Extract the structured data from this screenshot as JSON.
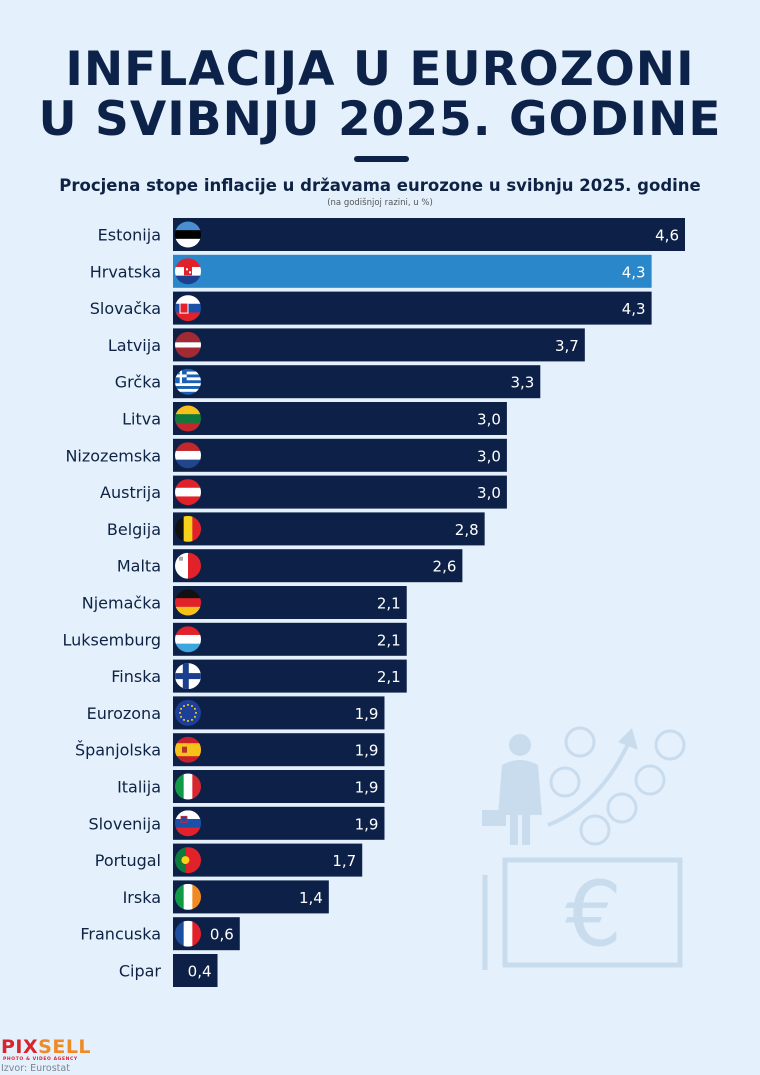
{
  "header": {
    "title_line1": "INFLACIJA U EUROZONI",
    "title_line2": "U SVIBNJU 2025. GODINE",
    "subtitle": "Procjena stope inflacije u državama eurozone u svibnju 2025. godine",
    "subnote": "(na godišnjoj razini, u %)"
  },
  "colors": {
    "background": "#e4f0fc",
    "bar_default": "#0d2148",
    "bar_highlight": "#2a87c9",
    "label_text": "#0e2244",
    "value_text": "#ffffff"
  },
  "chart_data": {
    "type": "bar",
    "orientation": "horizontal",
    "title": "Procjena stope inflacije u državama eurozone u svibnju 2025. godine",
    "subtitle": "(na godišnjoj razini, u %)",
    "xlabel": "",
    "ylabel": "",
    "xlim": [
      0,
      4.6
    ],
    "grid": false,
    "highlight": "Hrvatska",
    "categories": [
      "Estonija",
      "Hrvatska",
      "Slovačka",
      "Latvija",
      "Grčka",
      "Litva",
      "Nizozemska",
      "Austrija",
      "Belgija",
      "Malta",
      "Njemačka",
      "Luksemburg",
      "Finska",
      "Eurozona",
      "Španjolska",
      "Italija",
      "Slovenija",
      "Portugal",
      "Irska",
      "Francuska",
      "Cipar"
    ],
    "values": [
      4.6,
      4.3,
      4.3,
      3.7,
      3.3,
      3.0,
      3.0,
      3.0,
      2.8,
      2.6,
      2.1,
      2.1,
      2.1,
      1.9,
      1.9,
      1.9,
      1.9,
      1.7,
      1.4,
      0.6,
      0.4
    ],
    "value_labels": [
      "4,6",
      "4,3",
      "4,3",
      "3,7",
      "3,3",
      "3,0",
      "3,0",
      "3,0",
      "2,8",
      "2,6",
      "2,1",
      "2,1",
      "2,1",
      "1,9",
      "1,9",
      "1,9",
      "1,9",
      "1,7",
      "1,4",
      "0,6",
      "0,4"
    ],
    "flags": [
      "estonia",
      "croatia",
      "slovakia",
      "latvia",
      "greece",
      "lithuania",
      "netherlands",
      "austria",
      "belgium",
      "malta",
      "germany",
      "luxembourg",
      "finland",
      "eu",
      "spain",
      "italy",
      "slovenia",
      "portugal",
      "ireland",
      "france",
      "none"
    ]
  },
  "footer": {
    "brand_part1": "PIX",
    "brand_part2": "SELL",
    "brand_tagline": "PHOTO & VIDEO AGENCY",
    "source": "Izvor: Eurostat"
  },
  "illustration": "shopper-price-rise-euro-banknote-icon"
}
